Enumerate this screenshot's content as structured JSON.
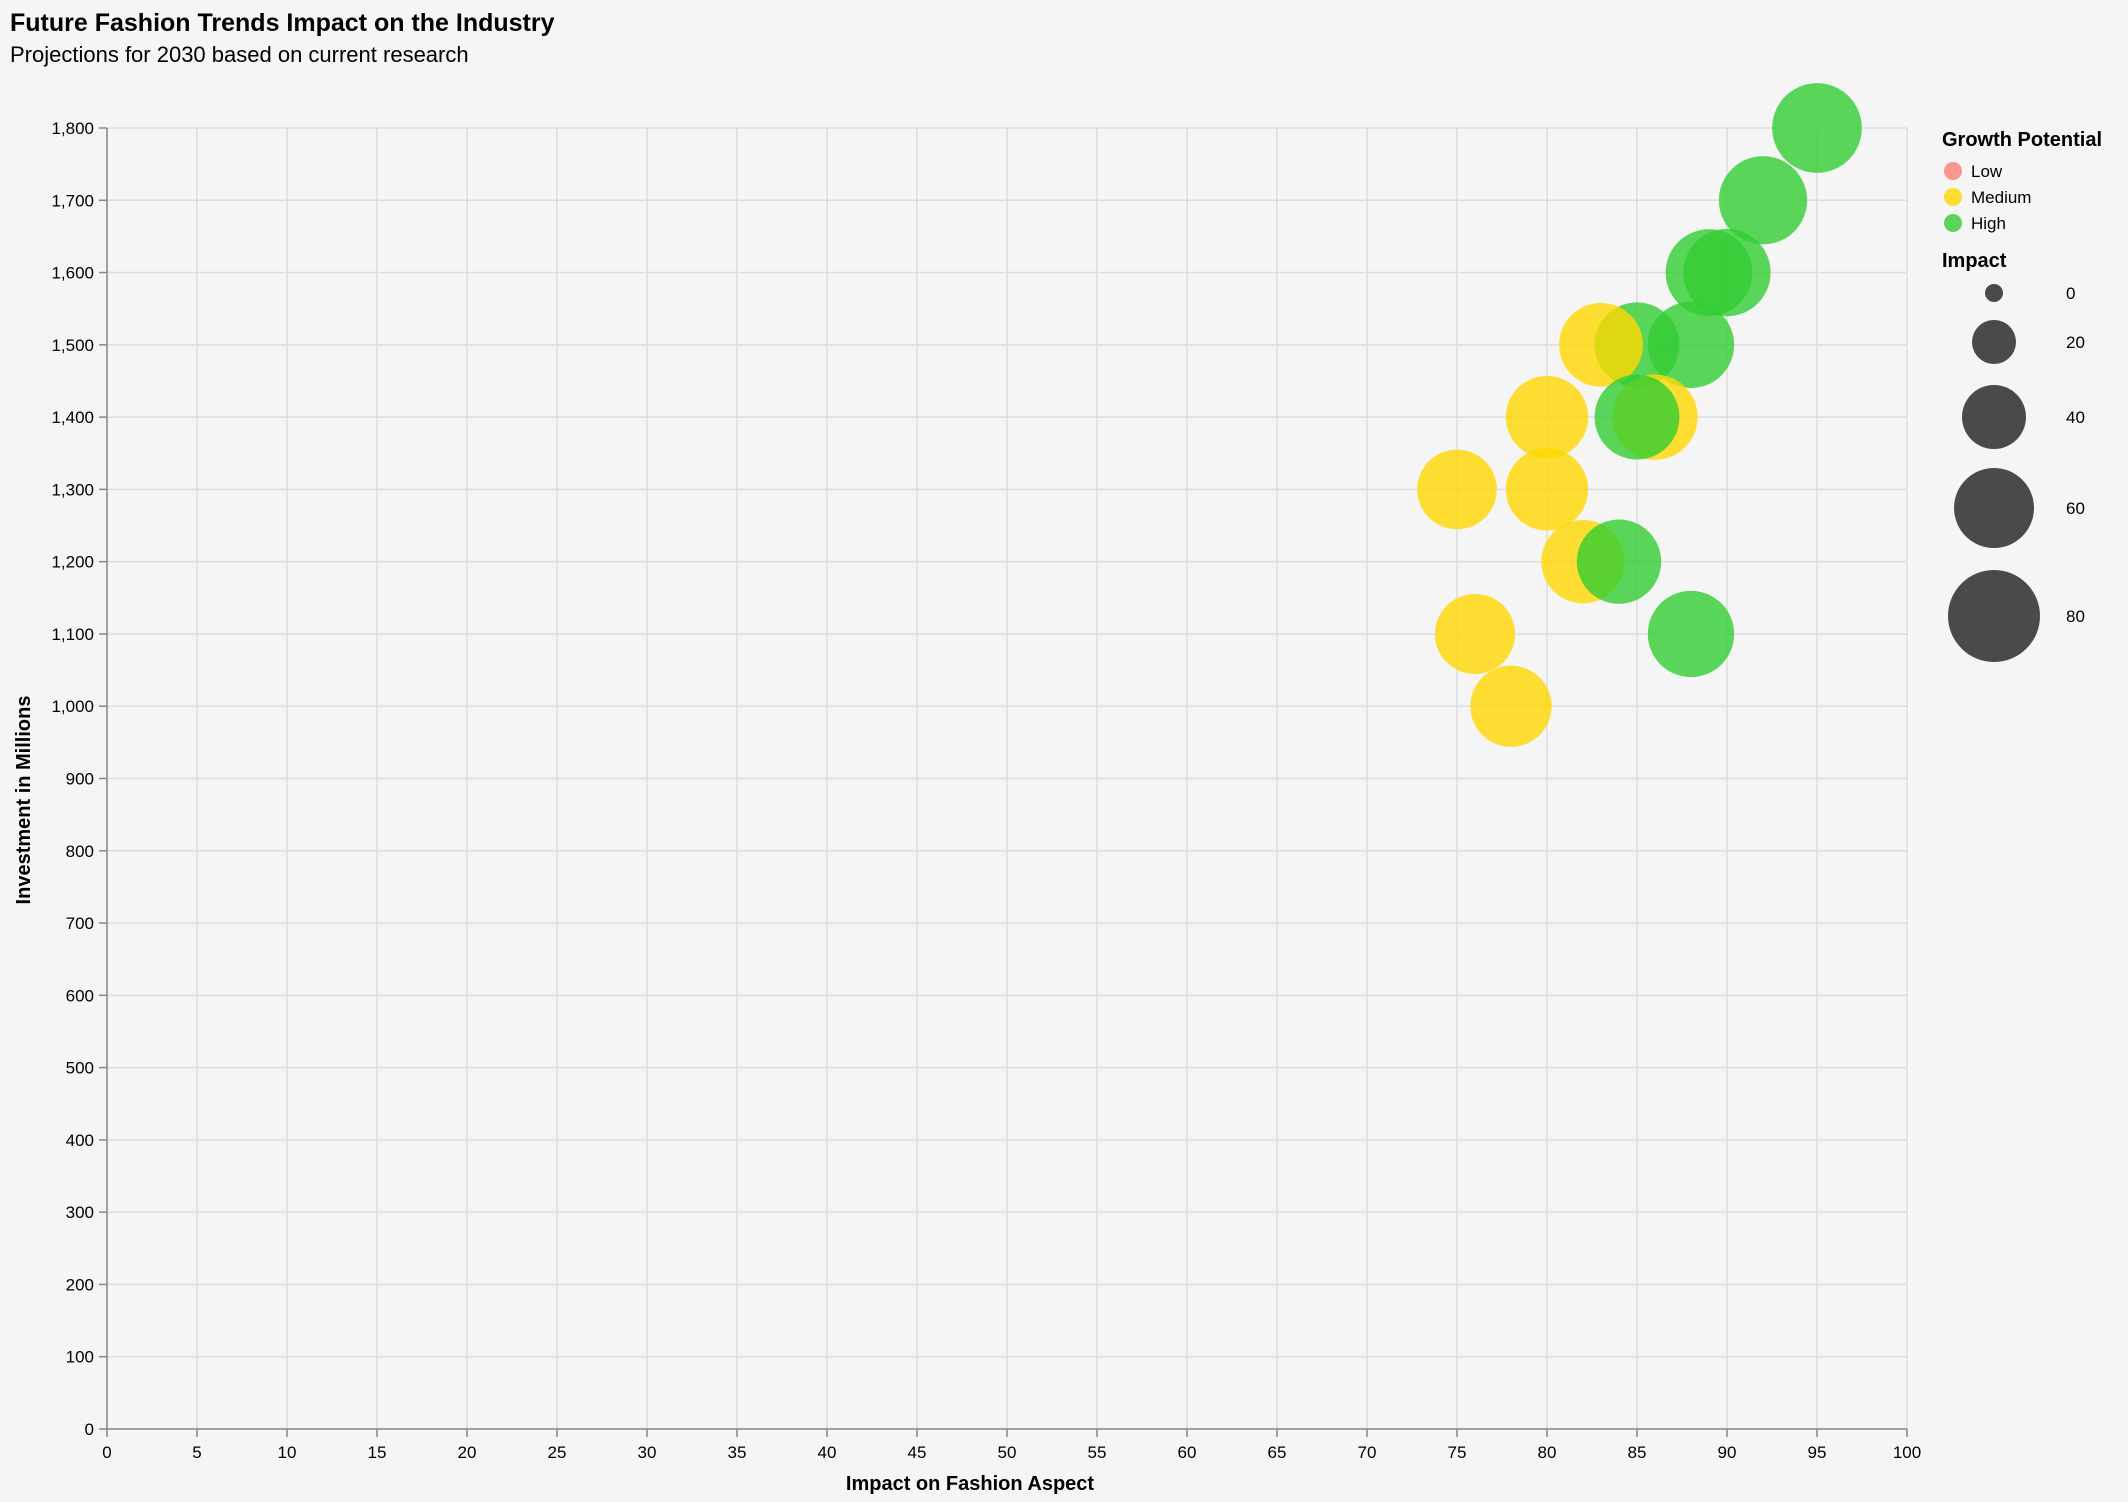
{
  "chart_data": {
    "type": "scatter",
    "title": "Future Fashion Trends Impact on the Industry",
    "subtitle": "Projections for 2030 based on current research",
    "xlabel": "Impact on Fashion Aspect",
    "ylabel": "Investment in Millions",
    "xlim": [
      0,
      100
    ],
    "ylim": [
      0,
      1800
    ],
    "x_ticks": [
      0,
      5,
      10,
      15,
      20,
      25,
      30,
      35,
      40,
      45,
      50,
      55,
      60,
      65,
      70,
      75,
      80,
      85,
      90,
      95,
      100
    ],
    "y_ticks": [
      0,
      100,
      200,
      300,
      400,
      500,
      600,
      700,
      800,
      900,
      1000,
      1100,
      1200,
      1300,
      1400,
      1500,
      1600,
      1700,
      1800
    ],
    "grid": true,
    "size_encoding": "x",
    "points": [
      {
        "x": 95,
        "y": 1800,
        "growth": "High"
      },
      {
        "x": 92,
        "y": 1700,
        "growth": "High"
      },
      {
        "x": 89,
        "y": 1600,
        "growth": "High"
      },
      {
        "x": 90,
        "y": 1600,
        "growth": "High"
      },
      {
        "x": 88,
        "y": 1500,
        "growth": "High"
      },
      {
        "x": 85,
        "y": 1500,
        "growth": "High"
      },
      {
        "x": 83,
        "y": 1500,
        "growth": "Medium"
      },
      {
        "x": 86,
        "y": 1400,
        "growth": "Medium"
      },
      {
        "x": 80,
        "y": 1400,
        "growth": "Medium"
      },
      {
        "x": 85,
        "y": 1400,
        "growth": "High"
      },
      {
        "x": 75,
        "y": 1300,
        "growth": "Medium"
      },
      {
        "x": 80,
        "y": 1300,
        "growth": "Medium"
      },
      {
        "x": 82,
        "y": 1200,
        "growth": "Medium"
      },
      {
        "x": 84,
        "y": 1200,
        "growth": "High"
      },
      {
        "x": 76,
        "y": 1100,
        "growth": "Medium"
      },
      {
        "x": 88,
        "y": 1100,
        "growth": "High"
      },
      {
        "x": 78,
        "y": 1000,
        "growth": "Medium"
      }
    ],
    "legend": {
      "color": {
        "title": "Growth Potential",
        "items": [
          {
            "label": "Low",
            "color": "#fa8072"
          },
          {
            "label": "Medium",
            "color": "#ffd700"
          },
          {
            "label": "High",
            "color": "#32cd32"
          }
        ]
      },
      "size": {
        "title": "Impact",
        "items": [
          "0",
          "20",
          "40",
          "60",
          "80"
        ]
      }
    },
    "colors": {
      "Low": "#fa8072",
      "Medium": "#ffd700",
      "High": "#32cd32",
      "grid": "#dddddd",
      "axis": "#888888",
      "size_swatch": "#4a4a4a"
    }
  }
}
